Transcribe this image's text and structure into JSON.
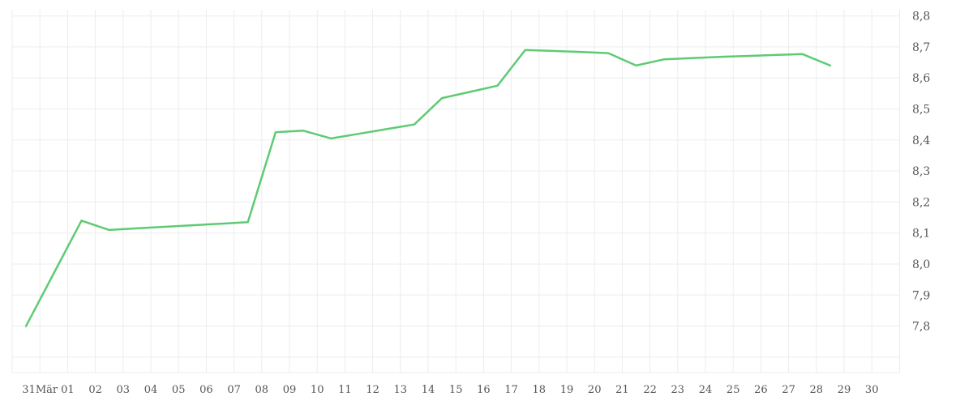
{
  "colors": {
    "line": "#5ecb74",
    "grid": "#ededed",
    "axis_label": "#555555",
    "background": "#ffffff"
  },
  "chart_data": {
    "type": "line",
    "title": "",
    "xlabel": "",
    "ylabel": "",
    "legend": "none",
    "grid": true,
    "categories": [
      "31Mär",
      "01",
      "02",
      "03",
      "04",
      "05",
      "06",
      "07",
      "08",
      "09",
      "10",
      "11",
      "12",
      "13",
      "14",
      "15",
      "16",
      "17",
      "18",
      "19",
      "20",
      "21",
      "22",
      "23",
      "24",
      "25",
      "26",
      "27",
      "28",
      "29"
    ],
    "values": [
      7.8,
      7.97,
      8.14,
      8.11,
      8.115,
      8.12,
      8.125,
      8.13,
      8.135,
      8.425,
      8.43,
      8.405,
      8.42,
      8.435,
      8.45,
      8.535,
      8.555,
      8.575,
      8.69,
      8.687,
      8.684,
      8.68,
      8.64,
      8.66,
      8.664,
      8.668,
      8.671,
      8.674,
      8.677,
      8.64
    ],
    "x_axis_labels": [
      "31Mär",
      "01",
      "02",
      "03",
      "04",
      "05",
      "06",
      "07",
      "08",
      "09",
      "10",
      "11",
      "12",
      "13",
      "14",
      "15",
      "16",
      "17",
      "18",
      "19",
      "20",
      "21",
      "22",
      "23",
      "24",
      "25",
      "26",
      "27",
      "28",
      "29",
      "30"
    ],
    "y_ticks": [
      {
        "v": 8.8,
        "label": "8,8"
      },
      {
        "v": 8.7,
        "label": "8,7"
      },
      {
        "v": 8.6,
        "label": "8,6"
      },
      {
        "v": 8.5,
        "label": "8,5"
      },
      {
        "v": 8.4,
        "label": "8,4"
      },
      {
        "v": 8.3,
        "label": "8,3"
      },
      {
        "v": 8.2,
        "label": "8,2"
      },
      {
        "v": 8.1,
        "label": "8,1"
      },
      {
        "v": 8.0,
        "label": "8,0"
      },
      {
        "v": 7.9,
        "label": "7,9"
      },
      {
        "v": 7.8,
        "label": "7,8"
      },
      {
        "v": 7.7,
        "label": ""
      }
    ],
    "ylim": [
      7.65,
      8.82
    ]
  }
}
